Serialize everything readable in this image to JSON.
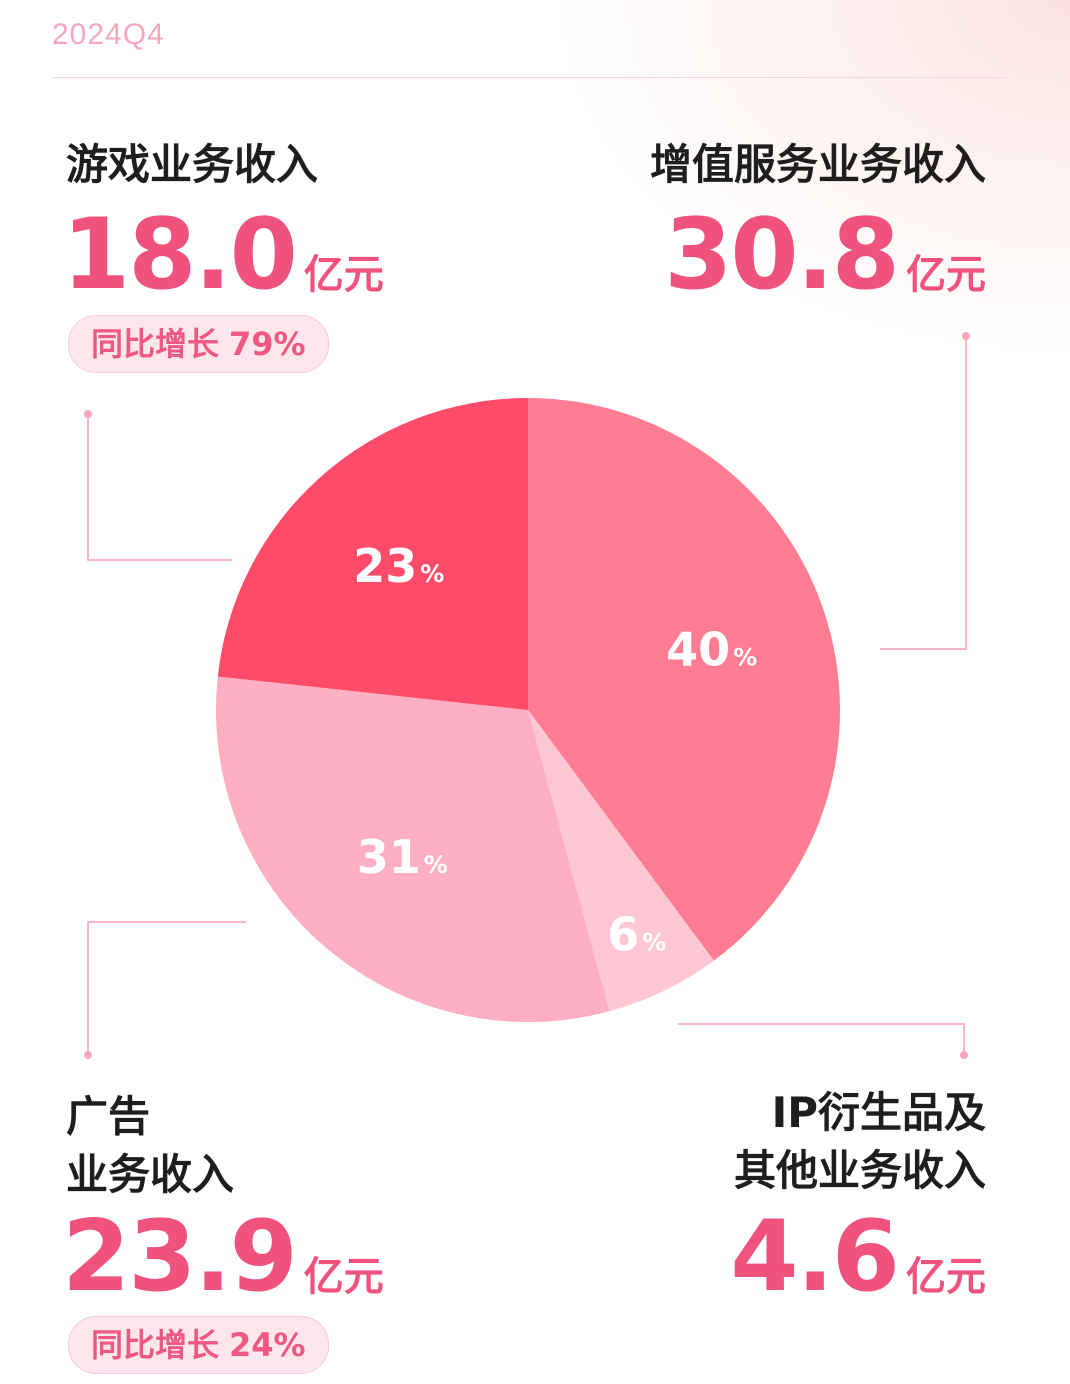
{
  "period": "2024Q4",
  "segments": {
    "games": {
      "label_lines": [
        "游戏业务收入"
      ],
      "value": "18.0",
      "unit": "亿元",
      "growth_label": "同比增长",
      "growth_value": "79%"
    },
    "vas": {
      "label_lines": [
        "增值服务业务收入"
      ],
      "value": "30.8",
      "unit": "亿元"
    },
    "ads": {
      "label_lines": [
        "广告",
        "业务收入"
      ],
      "value": "23.9",
      "unit": "亿元",
      "growth_label": "同比增长",
      "growth_value": "24%"
    },
    "ip": {
      "label_lines": [
        "IP衍生品及",
        "其他业务收入"
      ],
      "value": "4.6",
      "unit": "亿元"
    }
  },
  "chart_data": {
    "type": "pie",
    "slices": [
      {
        "label": "增值服务业务收入",
        "value": 30.8,
        "percent_label": "40",
        "color": "#ff7d93"
      },
      {
        "label": "IP衍生品及其他业务收入",
        "value": 4.6,
        "percent_label": "6",
        "color": "#ffc7d3"
      },
      {
        "label": "广告业务收入",
        "value": 23.9,
        "percent_label": "31",
        "color": "#ffafc3"
      },
      {
        "label": "游戏业务收入",
        "value": 18.0,
        "percent_label": "23",
        "color": "#ff4b6a"
      }
    ],
    "start": "12 o'clock, clockwise",
    "percent_sign": "%"
  }
}
